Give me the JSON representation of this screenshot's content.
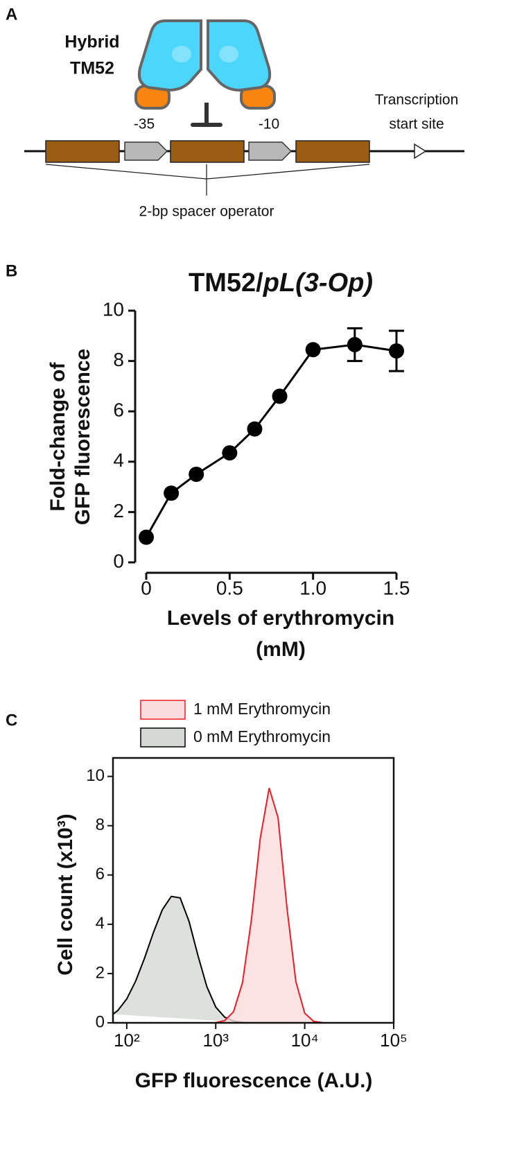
{
  "panel_labels": [
    "A",
    "B",
    "C"
  ],
  "diagram": {
    "protein_label": [
      "Hybrid",
      "TM52"
    ],
    "minus35": "-35",
    "minus10": "-10",
    "tss_label": [
      "Transcription",
      "start site"
    ],
    "operator_label": "2-bp spacer operator"
  },
  "chart_data": [
    {
      "type": "line",
      "title": [
        "TM52/",
        "pL(3-Op)"
      ],
      "xlabel": [
        "Levels of erythromycin",
        "(mM)"
      ],
      "ylabel": [
        "Fold-change of",
        "GFP fluorescence"
      ],
      "x": [
        0,
        0.15,
        0.3,
        0.5,
        0.65,
        0.8,
        1.0,
        1.25,
        1.5
      ],
      "values": [
        1.0,
        2.75,
        3.5,
        4.35,
        5.3,
        6.6,
        8.45,
        8.65,
        8.4
      ],
      "errors": [
        null,
        null,
        null,
        null,
        null,
        null,
        null,
        0.65,
        0.8
      ],
      "color": "#000000",
      "xlim": [
        0,
        1.5
      ],
      "xticks": [
        0,
        0.5,
        {
          "value": 1,
          "label": "1.0"
        },
        1.5
      ],
      "ylim": [
        0,
        10
      ],
      "yticks": [
        0,
        2,
        4,
        6,
        8,
        10
      ]
    },
    {
      "type": "area",
      "xlabel": "GFP fluorescence (A.U.)",
      "ylabel": "Cell count (x10³)",
      "xscale": "log",
      "legend": "top",
      "xlim": [
        70,
        100000
      ],
      "xticks": [
        {
          "value": 100,
          "label": "10²"
        },
        {
          "value": 1000,
          "label": "10³"
        },
        {
          "value": 10000,
          "label": "10⁴"
        },
        {
          "value": 100000,
          "label": "10⁵"
        }
      ],
      "ylim": [
        0,
        10.75
      ],
      "yticks": [
        0,
        2,
        4,
        6,
        8,
        10
      ],
      "series": [
        {
          "name": "1 mM Erythromycin",
          "color": "#ee1c25",
          "fill": "#fbdcdc",
          "x": [
            1000,
            1259,
            1585,
            1995,
            2512,
            3162,
            3981,
            5012,
            6310,
            7943,
            10000,
            12589,
            15849
          ],
          "values": [
            0.01,
            0.09,
            0.45,
            1.63,
            4.16,
            7.48,
            9.53,
            8.33,
            4.67,
            1.68,
            0.39,
            0.06,
            0.01
          ]
        },
        {
          "name": "0 mM Erythromycin",
          "color": "#000000",
          "fill": "#d6d8d6",
          "x": [
            70,
            79.4,
            100,
            125.9,
            158.5,
            199.5,
            251.2,
            316.2,
            398.1,
            501.2,
            631,
            794.3,
            1000,
            1259,
            1585,
            1995,
            2512
          ],
          "values": [
            0.35,
            0.5,
            0.97,
            1.69,
            2.63,
            3.67,
            4.59,
            5.13,
            5.07,
            4.12,
            2.73,
            1.47,
            0.64,
            0.23,
            0.07,
            0.02,
            0
          ]
        }
      ]
    }
  ]
}
